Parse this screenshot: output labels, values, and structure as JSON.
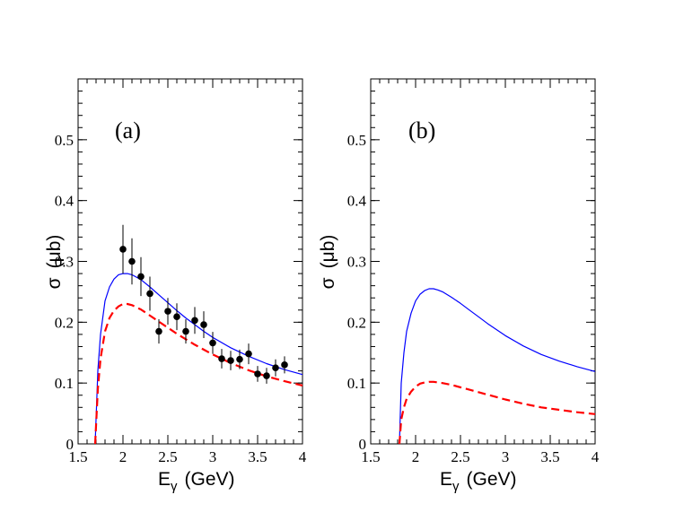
{
  "chart_data": [
    {
      "type": "line",
      "panel_label": "(a)",
      "xlabel_main": "E",
      "xlabel_sub": "γ",
      "xlabel_unit": "(GeV)",
      "ylabel_main": "σ",
      "ylabel_unit": "(μb)",
      "xlim": [
        1.5,
        4
      ],
      "ylim": [
        0,
        0.6
      ],
      "xticks": [
        1.5,
        2,
        2.5,
        3,
        3.5,
        4
      ],
      "xtick_labels": [
        "1.5",
        "2",
        "2.5",
        "3",
        "3.5",
        "4"
      ],
      "yticks": [
        0,
        0.1,
        0.2,
        0.3,
        0.4,
        0.5
      ],
      "ytick_labels": [
        "0",
        "0.1",
        "0.2",
        "0.3",
        "0.4",
        "0.5"
      ],
      "series": [
        {
          "name": "blue-solid",
          "style": "solid",
          "color": "#0000ff",
          "x": [
            1.69,
            1.72,
            1.75,
            1.8,
            1.85,
            1.9,
            1.95,
            2.0,
            2.05,
            2.1,
            2.2,
            2.3,
            2.4,
            2.5,
            2.6,
            2.7,
            2.8,
            2.9,
            3.0,
            3.2,
            3.4,
            3.6,
            3.8,
            4.0
          ],
          "y": [
            0.0,
            0.12,
            0.18,
            0.235,
            0.258,
            0.271,
            0.278,
            0.28,
            0.28,
            0.278,
            0.27,
            0.258,
            0.245,
            0.232,
            0.219,
            0.207,
            0.196,
            0.185,
            0.175,
            0.158,
            0.144,
            0.132,
            0.122,
            0.114
          ]
        },
        {
          "name": "red-dashed",
          "style": "dashed",
          "color": "#ff0000",
          "x": [
            1.69,
            1.72,
            1.75,
            1.8,
            1.85,
            1.9,
            1.95,
            2.0,
            2.05,
            2.1,
            2.2,
            2.3,
            2.4,
            2.5,
            2.6,
            2.7,
            2.8,
            2.9,
            3.0,
            3.2,
            3.4,
            3.6,
            3.8,
            4.0
          ],
          "y": [
            0.0,
            0.09,
            0.14,
            0.185,
            0.207,
            0.219,
            0.226,
            0.23,
            0.23,
            0.228,
            0.221,
            0.211,
            0.201,
            0.191,
            0.181,
            0.172,
            0.163,
            0.155,
            0.147,
            0.133,
            0.121,
            0.111,
            0.103,
            0.096
          ]
        }
      ],
      "data_points": {
        "x": [
          2.0,
          2.1,
          2.2,
          2.3,
          2.4,
          2.5,
          2.6,
          2.7,
          2.8,
          2.9,
          3.0,
          3.1,
          3.2,
          3.3,
          3.4,
          3.5,
          3.6,
          3.7,
          3.8
        ],
        "y": [
          0.32,
          0.3,
          0.275,
          0.247,
          0.185,
          0.218,
          0.209,
          0.185,
          0.203,
          0.196,
          0.166,
          0.14,
          0.137,
          0.139,
          0.148,
          0.115,
          0.112,
          0.125,
          0.13
        ],
        "yerr": [
          0.04,
          0.038,
          0.032,
          0.028,
          0.02,
          0.022,
          0.022,
          0.02,
          0.022,
          0.022,
          0.018,
          0.016,
          0.016,
          0.016,
          0.017,
          0.013,
          0.013,
          0.014,
          0.014
        ]
      }
    },
    {
      "type": "line",
      "panel_label": "(b)",
      "xlabel_main": "E",
      "xlabel_sub": "γ",
      "xlabel_unit": "(GeV)",
      "ylabel_main": "σ",
      "ylabel_unit": "(μb)",
      "xlim": [
        1.5,
        4
      ],
      "ylim": [
        0,
        0.6
      ],
      "xticks": [
        1.5,
        2,
        2.5,
        3,
        3.5,
        4
      ],
      "xtick_labels": [
        "1.5",
        "2",
        "2.5",
        "3",
        "3.5",
        "4"
      ],
      "yticks": [
        0,
        0.1,
        0.2,
        0.3,
        0.4,
        0.5
      ],
      "ytick_labels": [
        "0",
        "0.1",
        "0.2",
        "0.3",
        "0.4",
        "0.5"
      ],
      "series": [
        {
          "name": "blue-solid",
          "style": "solid",
          "color": "#0000ff",
          "x": [
            1.82,
            1.84,
            1.87,
            1.9,
            1.95,
            2.0,
            2.05,
            2.1,
            2.15,
            2.2,
            2.25,
            2.3,
            2.4,
            2.5,
            2.6,
            2.7,
            2.8,
            3.0,
            3.2,
            3.4,
            3.6,
            3.8,
            4.0
          ],
          "y": [
            0.0,
            0.1,
            0.15,
            0.185,
            0.215,
            0.235,
            0.246,
            0.252,
            0.255,
            0.255,
            0.253,
            0.25,
            0.241,
            0.231,
            0.22,
            0.209,
            0.198,
            0.178,
            0.161,
            0.147,
            0.136,
            0.127,
            0.119
          ]
        },
        {
          "name": "red-dashed",
          "style": "dashed",
          "color": "#ff0000",
          "x": [
            1.82,
            1.84,
            1.87,
            1.9,
            1.95,
            2.0,
            2.05,
            2.1,
            2.15,
            2.2,
            2.25,
            2.3,
            2.4,
            2.5,
            2.6,
            2.7,
            2.8,
            3.0,
            3.2,
            3.4,
            3.6,
            3.8,
            4.0
          ],
          "y": [
            0.0,
            0.04,
            0.06,
            0.074,
            0.086,
            0.094,
            0.099,
            0.101,
            0.102,
            0.102,
            0.101,
            0.1,
            0.097,
            0.093,
            0.089,
            0.085,
            0.081,
            0.073,
            0.066,
            0.06,
            0.056,
            0.052,
            0.049
          ]
        }
      ]
    }
  ]
}
